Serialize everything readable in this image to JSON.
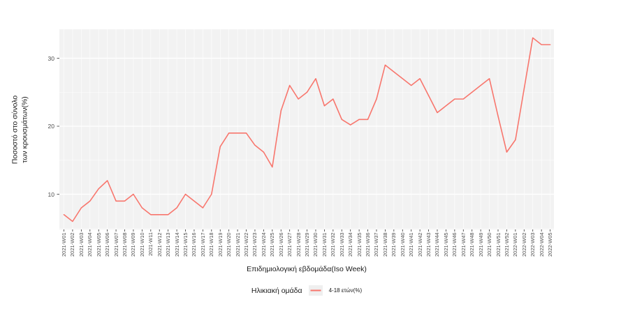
{
  "colors": {
    "line": "#F8766D",
    "panel_bg": "#F2F2F2",
    "grid": "#FFFFFF",
    "tick_text": "#4D4D4D",
    "axis_tick": "#333333",
    "legend_key_bg": "#EFEFEF"
  },
  "figure": {
    "ylabel_line1": "Ποσοστό στο σύνολο",
    "ylabel_line2": "των κρουσμάτων(%)"
  },
  "chart_data": {
    "type": "line",
    "title": "",
    "xlabel": "Επιδημιολογική εβδομάδα(Iso Week)",
    "ylabel": "Ποσοστό στο σύνολο των κρουσμάτων(%)",
    "legend_title": "Ηλικιακή ομάδα",
    "legend_position": "bottom",
    "grid": true,
    "ylim": [
      4.5,
      34.5
    ],
    "yticks": [
      10,
      20,
      30
    ],
    "categories": [
      "2021-W01",
      "2021-W02",
      "2021-W03",
      "2021-W04",
      "2021-W05",
      "2021-W06",
      "2021-W07",
      "2021-W08",
      "2021-W09",
      "2021-W10",
      "2021-W11",
      "2021-W12",
      "2021-W13",
      "2021-W14",
      "2021-W15",
      "2021-W16",
      "2021-W17",
      "2021-W18",
      "2021-W19",
      "2021-W20",
      "2021-W21",
      "2021-W22",
      "2021-W23",
      "2021-W24",
      "2021-W25",
      "2021-W26",
      "2021-W27",
      "2021-W28",
      "2021-W29",
      "2021-W30",
      "2021-W31",
      "2021-W32",
      "2021-W33",
      "2021-W34",
      "2021-W35",
      "2021-W36",
      "2021-W37",
      "2021-W38",
      "2021-W39",
      "2021-W40",
      "2021-W41",
      "2021-W42",
      "2021-W43",
      "2021-W44",
      "2021-W45",
      "2021-W46",
      "2021-W47",
      "2021-W48",
      "2021-W49",
      "2021-W50",
      "2021-W51",
      "2021-W52",
      "2022-W01",
      "2022-W02",
      "2022-W03",
      "2022-W04",
      "2022-W05"
    ],
    "series": [
      {
        "name": "4-18 ετών(%)",
        "color": "#F8766D",
        "values": [
          7,
          6,
          8,
          9,
          10.8,
          12,
          9,
          9,
          10,
          8,
          7,
          7,
          7,
          8,
          10,
          9,
          8,
          10,
          17,
          19,
          19,
          19,
          17.2,
          16.2,
          14,
          22.3,
          26,
          24,
          25,
          27,
          23,
          24,
          21,
          20.2,
          21,
          21,
          24,
          29,
          28,
          27,
          26,
          27,
          24.5,
          22,
          23,
          24,
          24,
          25,
          26,
          27,
          21.5,
          16.2,
          18,
          25.5,
          33,
          32,
          32
        ]
      }
    ]
  }
}
